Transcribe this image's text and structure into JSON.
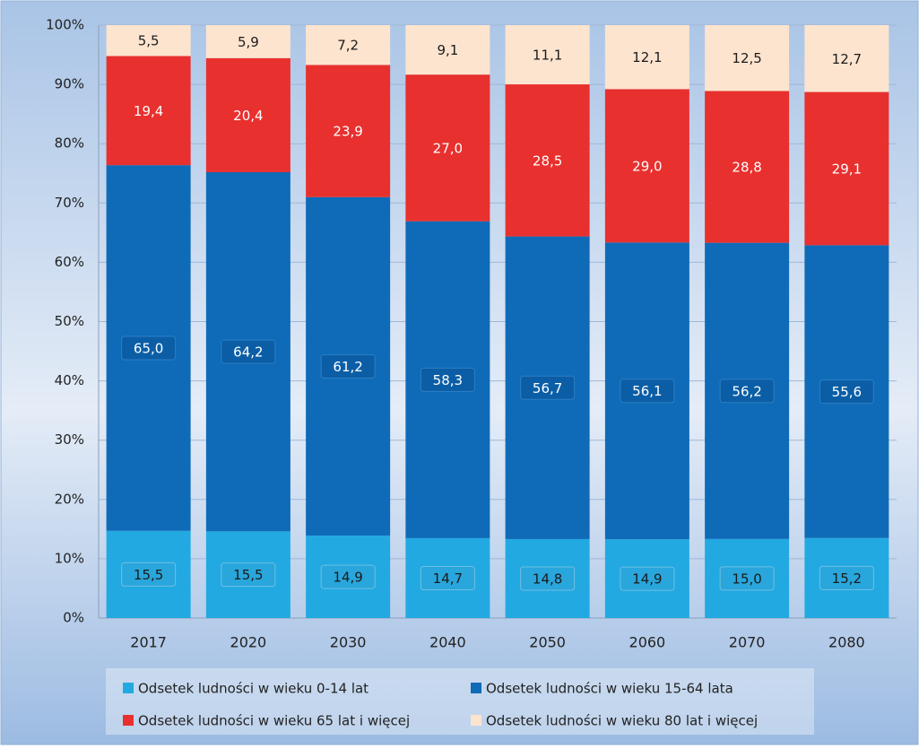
{
  "chart_data": {
    "type": "bar",
    "stacking": "percent",
    "categories": [
      "2017",
      "2020",
      "2030",
      "2040",
      "2050",
      "2060",
      "2070",
      "2080"
    ],
    "series": [
      {
        "name": "Odsetek ludności w wieku 0-14 lat",
        "color": "#22a9e1",
        "values": [
          15.5,
          15.5,
          14.9,
          14.7,
          14.8,
          14.9,
          15.0,
          15.2
        ],
        "value_labels": [
          "15,5",
          "15,5",
          "14,9",
          "14,7",
          "14,8",
          "14,9",
          "15,0",
          "15,2"
        ]
      },
      {
        "name": "Odsetek ludności w wieku 15-64 lata",
        "color": "#0f6bb7",
        "values": [
          65.0,
          64.2,
          61.2,
          58.3,
          56.7,
          56.1,
          56.2,
          55.6
        ],
        "value_labels": [
          "65,0",
          "64,2",
          "61,2",
          "58,3",
          "56,7",
          "56,1",
          "56,2",
          "55,6"
        ]
      },
      {
        "name": "Odsetek ludności w wieku 65 lat i więcej",
        "color": "#e8302e",
        "values": [
          19.4,
          20.4,
          23.9,
          27.0,
          28.5,
          29.0,
          28.8,
          29.1
        ],
        "value_labels": [
          "19,4",
          "20,4",
          "23,9",
          "27,0",
          "28,5",
          "29,0",
          "28,8",
          "29,1"
        ]
      },
      {
        "name": "Odsetek ludności w wieku 80 lat i więcej",
        "color": "#fde4cf",
        "values": [
          5.5,
          5.9,
          7.2,
          9.1,
          11.1,
          12.1,
          12.5,
          12.7
        ],
        "value_labels": [
          "5,5",
          "5,9",
          "7,2",
          "9,1",
          "11,1",
          "12,1",
          "12,5",
          "12,7"
        ]
      }
    ],
    "ylim": [
      0,
      100
    ],
    "yticks": [
      {
        "value": 0,
        "label": "0%"
      },
      {
        "value": 10,
        "label": "10%"
      },
      {
        "value": 20,
        "label": "20%"
      },
      {
        "value": 30,
        "label": "30%"
      },
      {
        "value": 40,
        "label": "40%"
      },
      {
        "value": 50,
        "label": "50%"
      },
      {
        "value": 60,
        "label": "60%"
      },
      {
        "value": 70,
        "label": "70%"
      },
      {
        "value": 80,
        "label": "80%"
      },
      {
        "value": 90,
        "label": "90%"
      },
      {
        "value": 100,
        "label": "100%"
      }
    ],
    "grid": true,
    "legend": "bottom"
  }
}
